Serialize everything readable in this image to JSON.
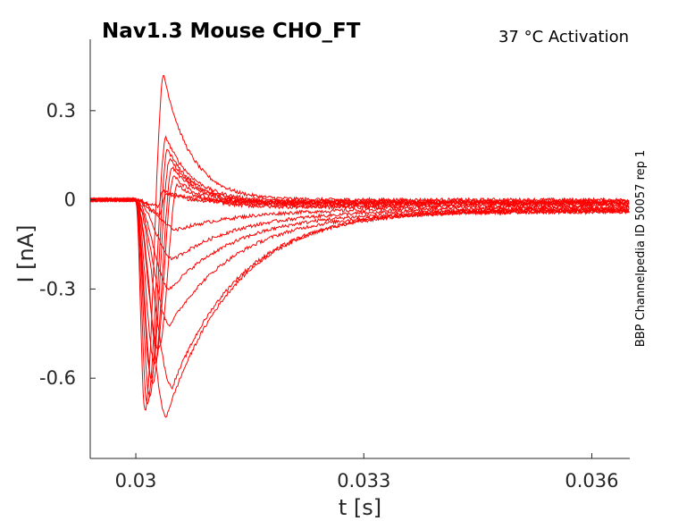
{
  "chart_data": {
    "type": "line",
    "title": "Nav1.3  Mouse  CHO_FT",
    "subtitle": "37 °C  Activation",
    "side_label": "BBP Channelpedia ID 50057 rep 1",
    "xlabel": "t [s]",
    "ylabel": "I [nA]",
    "xlim": [
      0.0294,
      0.0365
    ],
    "ylim": [
      -0.87,
      0.54
    ],
    "xticks": [
      0.03,
      0.033,
      0.036
    ],
    "xtick_labels": [
      "0.03",
      "0.033",
      "0.036"
    ],
    "yticks": [
      0.3,
      0,
      -0.3,
      -0.6
    ],
    "ytick_labels": [
      "0.3",
      "0",
      "-0.3",
      "-0.6"
    ],
    "grid": false,
    "color": "#ff0000",
    "traces": [
      {
        "t_on": 0.03,
        "peak": -0.02,
        "t_peak": 0.0303,
        "rebound": 0.03,
        "t_reb": 0.03035,
        "ss": -0.005
      },
      {
        "t_on": 0.03,
        "peak": -0.05,
        "t_peak": 0.0303,
        "rebound": 0.02,
        "t_reb": 0.0304,
        "ss": -0.01
      },
      {
        "t_on": 0.03,
        "peak": -0.71,
        "t_peak": 0.03012,
        "rebound": 0.42,
        "t_reb": 0.03037,
        "ss": 0.0
      },
      {
        "t_on": 0.03,
        "peak": -0.69,
        "t_peak": 0.03015,
        "rebound": 0.21,
        "t_reb": 0.0304,
        "ss": -0.005
      },
      {
        "t_on": 0.03,
        "peak": -0.66,
        "t_peak": 0.03018,
        "rebound": 0.17,
        "t_reb": 0.03042,
        "ss": -0.01
      },
      {
        "t_on": 0.03,
        "peak": -0.6,
        "t_peak": 0.0302,
        "rebound": 0.14,
        "t_reb": 0.03045,
        "ss": -0.012
      },
      {
        "t_on": 0.03,
        "peak": -0.62,
        "t_peak": 0.03022,
        "rebound": 0.11,
        "t_reb": 0.03048,
        "ss": -0.015
      },
      {
        "t_on": 0.03,
        "peak": -0.55,
        "t_peak": 0.03025,
        "rebound": 0.08,
        "t_reb": 0.0305,
        "ss": -0.02
      },
      {
        "t_on": 0.03,
        "peak": -0.5,
        "t_peak": 0.0303,
        "rebound": 0.05,
        "t_reb": 0.03055,
        "ss": -0.025
      },
      {
        "t_on": 0.03,
        "peak": -0.73,
        "t_peak": 0.0304,
        "rebound": null,
        "t_reb": null,
        "ss": -0.03
      },
      {
        "t_on": 0.03,
        "peak": -0.63,
        "t_peak": 0.03048,
        "rebound": null,
        "t_reb": null,
        "ss": -0.035
      },
      {
        "t_on": 0.03,
        "peak": -0.42,
        "t_peak": 0.03045,
        "rebound": null,
        "t_reb": null,
        "ss": -0.04
      },
      {
        "t_on": 0.03,
        "peak": -0.3,
        "t_peak": 0.03045,
        "rebound": null,
        "t_reb": null,
        "ss": -0.04
      },
      {
        "t_on": 0.03,
        "peak": -0.2,
        "t_peak": 0.0305,
        "rebound": null,
        "t_reb": null,
        "ss": -0.035
      },
      {
        "t_on": 0.03,
        "peak": -0.1,
        "t_peak": 0.03055,
        "rebound": null,
        "t_reb": null,
        "ss": -0.03
      }
    ]
  }
}
